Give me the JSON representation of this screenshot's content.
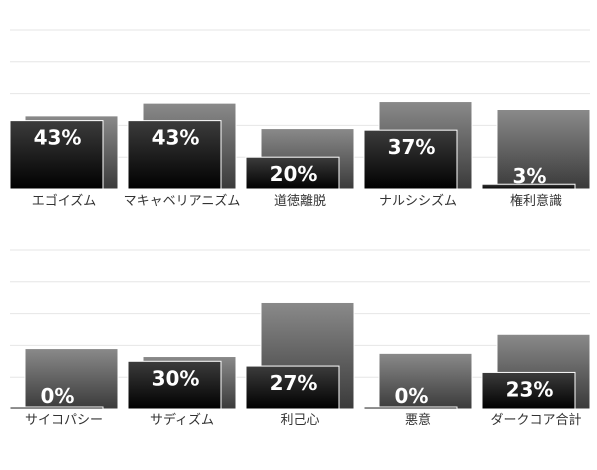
{
  "chart_data": [
    {
      "type": "bar",
      "categories": [
        "エゴイズム",
        "マキャベリアニズム",
        "道徳離脱",
        "ナルシシズム",
        "権利意識"
      ],
      "values": [
        43,
        43,
        20,
        37,
        3
      ],
      "value_labels": [
        "43%",
        "43%",
        "20%",
        "37%",
        "3%"
      ],
      "reference_values": [
        46,
        54,
        38,
        55,
        50
      ],
      "ylim": [
        0,
        100
      ],
      "grid": true,
      "colors": {
        "front": "#111111",
        "back": "#555555"
      }
    },
    {
      "type": "bar",
      "categories": [
        "サイコパシー",
        "サディズム",
        "利己心",
        "悪意",
        "ダークコア合計"
      ],
      "values": [
        0,
        30,
        27,
        0,
        23
      ],
      "value_labels": [
        "0%",
        "30%",
        "27%",
        "0%",
        "23%"
      ],
      "reference_values": [
        38,
        33,
        67,
        35,
        47
      ],
      "ylim": [
        0,
        100
      ],
      "grid": true,
      "colors": {
        "front": "#111111",
        "back": "#555555"
      }
    }
  ]
}
